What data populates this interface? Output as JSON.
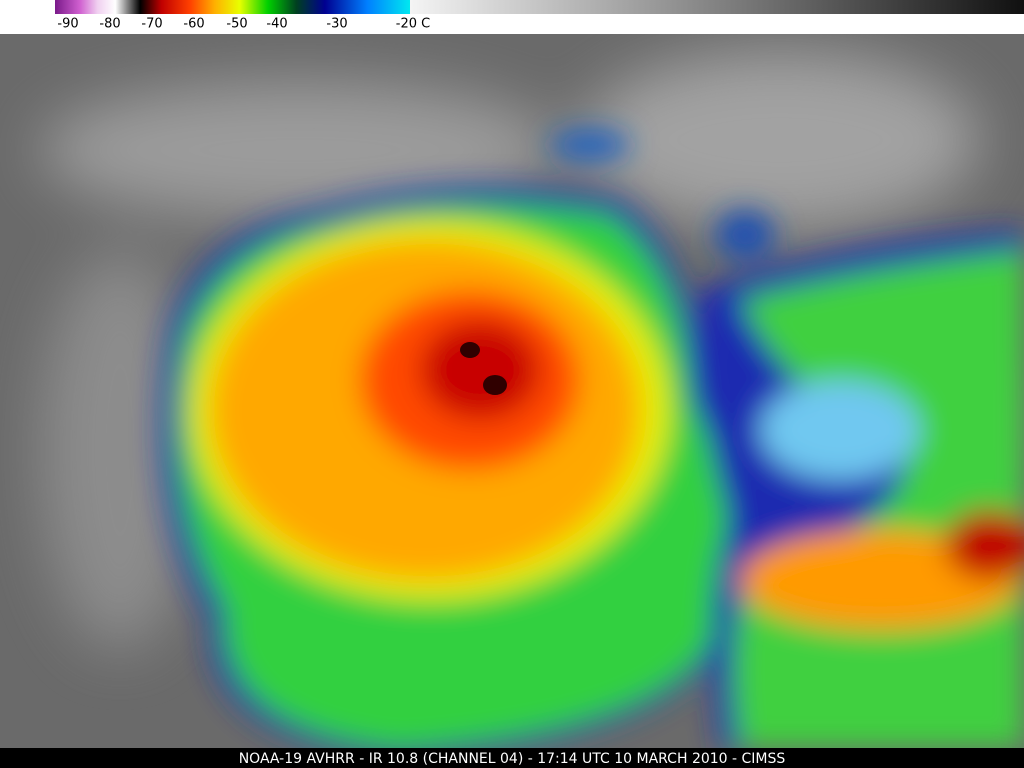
{
  "colorbar": {
    "labels": [
      "-90",
      "-80",
      "-70",
      "-60",
      "-50",
      "-40",
      "-30",
      "-20 C"
    ]
  },
  "caption": "NOAA-19 AVHRR  -  IR 10.8 (CHANNEL 04)  -  17:14 UTC 10 MARCH 2010  -  CIMSS"
}
